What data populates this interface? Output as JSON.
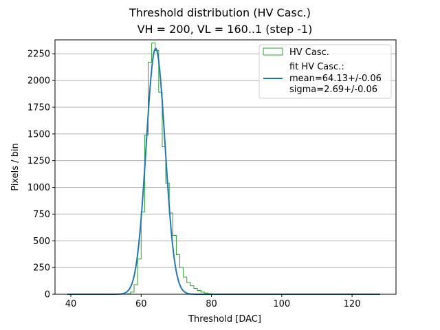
{
  "chart_data": {
    "type": "histogram",
    "title": "Threshold distribution (HV Casc.)",
    "subtitle": "VH = 200, VL = 160..1 (step -1)",
    "xlabel": "Threshold [DAC]",
    "ylabel": "Pixels / bin",
    "xlim": [
      35.5,
      132.5
    ],
    "ylim": [
      0,
      2380
    ],
    "xticks": [
      40,
      60,
      80,
      100,
      120
    ],
    "yticks": [
      0,
      250,
      500,
      750,
      1000,
      1250,
      1500,
      1750,
      2000,
      2250
    ],
    "grid": "y",
    "legend_position": "top-right",
    "histogram": {
      "name": "HV Casc.",
      "color": "#2ca02c",
      "bin_width": 1,
      "bins": [
        [
          56,
          5
        ],
        [
          57,
          20
        ],
        [
          58,
          90
        ],
        [
          59,
          330
        ],
        [
          60,
          770
        ],
        [
          61,
          1490
        ],
        [
          62,
          2170
        ],
        [
          63,
          2350
        ],
        [
          64,
          2280
        ],
        [
          65,
          1890
        ],
        [
          66,
          1380
        ],
        [
          67,
          1040
        ],
        [
          68,
          760
        ],
        [
          69,
          550
        ],
        [
          70,
          370
        ],
        [
          71,
          250
        ],
        [
          72,
          160
        ],
        [
          73,
          110
        ],
        [
          74,
          80
        ],
        [
          75,
          55
        ],
        [
          76,
          35
        ],
        [
          77,
          20
        ],
        [
          78,
          12
        ],
        [
          79,
          6
        ],
        [
          80,
          3
        ]
      ]
    },
    "fit": {
      "name": "fit HV Casc.:",
      "color": "#1f77b4",
      "mean": 64.13,
      "sigma": 2.69,
      "amplitude": 2300,
      "x_range": [
        39,
        128
      ],
      "mean_text": "mean=64.13+/-0.06",
      "sigma_text": "sigma=2.69+/-0.06"
    }
  }
}
